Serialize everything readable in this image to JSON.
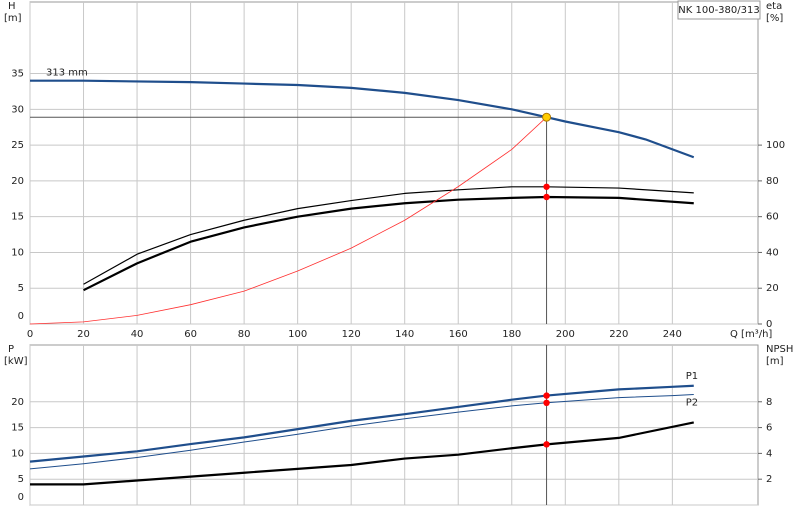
{
  "chart_data": [
    {
      "type": "line",
      "title": "NK 100-380/313",
      "ylabel": "H",
      "yunit": "[m]",
      "y2label": "eta",
      "y2unit": "[%]",
      "xlabel": "Q [m³/h]",
      "xlim": [
        0,
        272
      ],
      "xticks": [
        0,
        20,
        40,
        60,
        80,
        100,
        120,
        140,
        160,
        180,
        200,
        220,
        240
      ],
      "ylim": [
        0,
        45
      ],
      "yticks": [
        0,
        5,
        10,
        15,
        20,
        25,
        30,
        35
      ],
      "y2lim": [
        0,
        180
      ],
      "y2ticks": [
        0,
        20,
        40,
        60,
        80,
        100
      ],
      "grid": true,
      "series": [
        {
          "name": "313 mm",
          "color": "#1f4e8c",
          "width": 2.2,
          "axis": "y",
          "x": [
            0,
            20,
            60,
            80,
            100,
            120,
            140,
            160,
            180,
            193,
            200,
            220,
            230,
            248
          ],
          "values": [
            34,
            34,
            33.8,
            33.6,
            33.4,
            33,
            32.3,
            31.3,
            30,
            28.9,
            28.3,
            26.8,
            25.8,
            23.3
          ]
        },
        {
          "color": "#000000",
          "width": 1.2,
          "axis": "y2",
          "x": [
            20,
            40,
            60,
            80,
            100,
            120,
            140,
            160,
            180,
            193,
            220,
            248
          ],
          "values": [
            22.2,
            39,
            50,
            58,
            64.5,
            69,
            73,
            75,
            76.7,
            76.7,
            76,
            73.3
          ]
        },
        {
          "color": "#000000",
          "width": 2.2,
          "axis": "y2",
          "x": [
            20,
            40,
            60,
            80,
            100,
            120,
            140,
            160,
            180,
            193,
            220,
            248
          ],
          "values": [
            18.9,
            33.9,
            46,
            54,
            60,
            64.5,
            67.5,
            69.5,
            70.5,
            71,
            70.5,
            67.5
          ]
        },
        {
          "color": "#ff3030",
          "width": 0.8,
          "axis": "y",
          "x": [
            0,
            20,
            40,
            60,
            80,
            100,
            120,
            140,
            160,
            180,
            193
          ],
          "values": [
            0,
            0.3,
            1.2,
            2.7,
            4.6,
            7.4,
            10.6,
            14.5,
            19.2,
            24.4,
            28.9
          ]
        }
      ],
      "duty_point": {
        "x": 193,
        "y": 28.9,
        "color": "#ffcc00"
      },
      "markers": [
        {
          "x": 193,
          "y": 76.7,
          "axis": "y2",
          "color": "#ff0000"
        },
        {
          "x": 193,
          "y": 71,
          "axis": "y2",
          "color": "#ff0000"
        }
      ]
    },
    {
      "type": "line",
      "ylabel": "P",
      "yunit": "[kW]",
      "y2label": "NPSH",
      "y2unit": "[m]",
      "xlim": [
        0,
        272
      ],
      "xticks": [
        0,
        20,
        40,
        60,
        80,
        100,
        120,
        140,
        160,
        180,
        200,
        220,
        240
      ],
      "ylim": [
        0,
        31
      ],
      "yticks": [
        0,
        5,
        10,
        15,
        20
      ],
      "y2lim": [
        0,
        12.4
      ],
      "y2ticks": [
        2,
        4,
        6,
        8
      ],
      "grid": true,
      "series": [
        {
          "name": "P1",
          "color": "#1f4e8c",
          "width": 2.2,
          "axis": "y",
          "x": [
            0,
            20,
            40,
            60,
            80,
            100,
            120,
            140,
            160,
            180,
            193,
            220,
            240,
            248
          ],
          "values": [
            8.4,
            9.4,
            10.4,
            11.8,
            13.1,
            14.7,
            16.3,
            17.6,
            19,
            20.4,
            21.2,
            22.4,
            22.9,
            23.1
          ]
        },
        {
          "name": "P2",
          "color": "#1f4e8c",
          "width": 1,
          "axis": "y",
          "x": [
            0,
            20,
            40,
            60,
            80,
            100,
            120,
            140,
            160,
            180,
            193,
            220,
            240,
            248
          ],
          "values": [
            7,
            8,
            9.2,
            10.6,
            12.2,
            13.7,
            15.3,
            16.7,
            18,
            19.2,
            19.8,
            20.8,
            21.2,
            21.4
          ]
        },
        {
          "color": "#000000",
          "width": 2.2,
          "axis": "y2",
          "x": [
            0,
            20,
            40,
            60,
            80,
            100,
            120,
            140,
            160,
            180,
            193,
            220,
            248
          ],
          "values": [
            1.6,
            1.6,
            1.9,
            2.2,
            2.5,
            2.8,
            3.1,
            3.6,
            3.9,
            4.4,
            4.7,
            5.2,
            6.4
          ]
        }
      ],
      "markers": [
        {
          "x": 193,
          "y": 21.2,
          "axis": "y",
          "color": "#ff0000"
        },
        {
          "x": 193,
          "y": 19.8,
          "axis": "y",
          "color": "#ff0000"
        },
        {
          "x": 193,
          "y": 4.7,
          "axis": "y2",
          "color": "#ff0000"
        }
      ]
    }
  ]
}
